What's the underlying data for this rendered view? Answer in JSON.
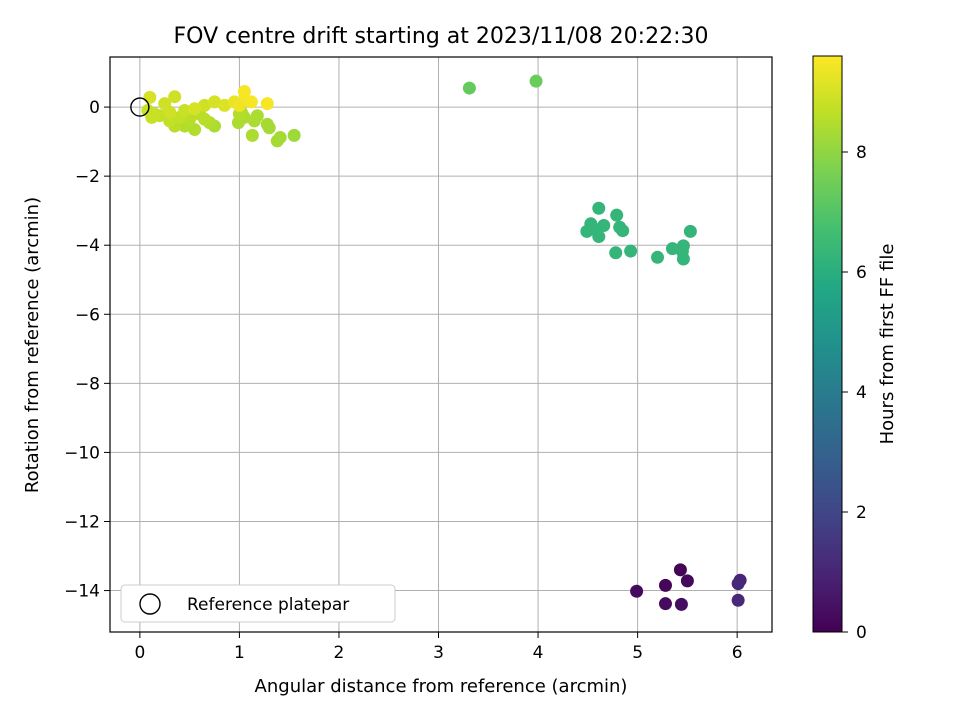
{
  "chart_data": {
    "type": "scatter",
    "title": "FOV centre drift starting at 2023/11/08 20:22:30",
    "xlabel": "Angular distance from reference (arcmin)",
    "ylabel": "Rotation from reference (arcmin)",
    "xlim": [
      -0.3,
      6.35
    ],
    "ylim": [
      -15.2,
      1.45
    ],
    "xticks": [
      0,
      1,
      2,
      3,
      4,
      5,
      6
    ],
    "yticks": [
      0,
      -2,
      -4,
      -6,
      -8,
      -10,
      -12,
      -14
    ],
    "grid": true,
    "legend": {
      "placement": "lower-left",
      "entries": [
        "Reference platepar"
      ]
    },
    "colorbar": {
      "label": "Hours from first FF file",
      "colormap": "viridis",
      "range": [
        0,
        9.6
      ],
      "ticks": [
        0,
        2,
        4,
        6,
        8
      ]
    },
    "reference_point": {
      "x": 0,
      "y": 0,
      "label": "Reference platepar"
    },
    "points": [
      {
        "x": 5.43,
        "y": -13.4,
        "h": 0.1
      },
      {
        "x": 5.28,
        "y": -13.85,
        "h": 0.15
      },
      {
        "x": 5.5,
        "y": -13.72,
        "h": 0.2
      },
      {
        "x": 4.99,
        "y": -14.02,
        "h": 0.25
      },
      {
        "x": 5.28,
        "y": -14.38,
        "h": 0.3
      },
      {
        "x": 5.44,
        "y": -14.4,
        "h": 0.35
      },
      {
        "x": 6.03,
        "y": -13.7,
        "h": 1.0
      },
      {
        "x": 6.01,
        "y": -13.8,
        "h": 1.05
      },
      {
        "x": 6.01,
        "y": -14.28,
        "h": 1.1
      },
      {
        "x": 4.61,
        "y": -2.93,
        "h": 6.3
      },
      {
        "x": 4.79,
        "y": -3.13,
        "h": 6.3
      },
      {
        "x": 4.53,
        "y": -3.38,
        "h": 6.3
      },
      {
        "x": 4.66,
        "y": -3.43,
        "h": 6.3
      },
      {
        "x": 4.82,
        "y": -3.48,
        "h": 6.3
      },
      {
        "x": 4.58,
        "y": -3.55,
        "h": 6.3
      },
      {
        "x": 4.49,
        "y": -3.6,
        "h": 6.3
      },
      {
        "x": 4.85,
        "y": -3.58,
        "h": 6.3
      },
      {
        "x": 4.61,
        "y": -3.75,
        "h": 6.3
      },
      {
        "x": 4.93,
        "y": -4.17,
        "h": 6.3
      },
      {
        "x": 4.78,
        "y": -4.22,
        "h": 6.3
      },
      {
        "x": 5.2,
        "y": -4.35,
        "h": 6.3
      },
      {
        "x": 5.35,
        "y": -4.1,
        "h": 6.3
      },
      {
        "x": 5.46,
        "y": -4.02,
        "h": 6.3
      },
      {
        "x": 5.45,
        "y": -4.18,
        "h": 6.3
      },
      {
        "x": 5.46,
        "y": -4.4,
        "h": 6.3
      },
      {
        "x": 5.53,
        "y": -3.6,
        "h": 6.3
      },
      {
        "x": 3.31,
        "y": 0.55,
        "h": 7.3
      },
      {
        "x": 3.98,
        "y": 0.75,
        "h": 7.4
      },
      {
        "x": 1.55,
        "y": -0.82,
        "h": 8.2
      },
      {
        "x": 1.41,
        "y": -0.88,
        "h": 8.3
      },
      {
        "x": 1.38,
        "y": -0.98,
        "h": 8.3
      },
      {
        "x": 1.13,
        "y": -0.82,
        "h": 8.4
      },
      {
        "x": 1.28,
        "y": -0.5,
        "h": 8.3
      },
      {
        "x": 1.3,
        "y": -0.6,
        "h": 8.3
      },
      {
        "x": 0.99,
        "y": -0.45,
        "h": 8.4
      },
      {
        "x": 1.02,
        "y": -0.15,
        "h": 8.4
      },
      {
        "x": 1.05,
        "y": -0.3,
        "h": 8.4
      },
      {
        "x": 1.15,
        "y": -0.4,
        "h": 8.4
      },
      {
        "x": 1.18,
        "y": -0.25,
        "h": 8.4
      },
      {
        "x": 1.0,
        "y": -0.2,
        "h": 8.5
      },
      {
        "x": 0.75,
        "y": -0.55,
        "h": 8.4
      },
      {
        "x": 0.7,
        "y": -0.45,
        "h": 8.5
      },
      {
        "x": 0.55,
        "y": -0.65,
        "h": 8.5
      },
      {
        "x": 0.45,
        "y": -0.55,
        "h": 8.5
      },
      {
        "x": 0.5,
        "y": -0.35,
        "h": 8.6
      },
      {
        "x": 0.6,
        "y": -0.2,
        "h": 8.6
      },
      {
        "x": 0.65,
        "y": -0.35,
        "h": 8.6
      },
      {
        "x": 0.35,
        "y": -0.55,
        "h": 8.6
      },
      {
        "x": 0.4,
        "y": -0.3,
        "h": 8.7
      },
      {
        "x": 0.3,
        "y": -0.4,
        "h": 8.7
      },
      {
        "x": 0.2,
        "y": -0.25,
        "h": 8.7
      },
      {
        "x": 0.15,
        "y": -0.2,
        "h": 8.8
      },
      {
        "x": 0.12,
        "y": -0.3,
        "h": 8.8
      },
      {
        "x": 0.08,
        "y": -0.1,
        "h": 8.8
      },
      {
        "x": 0.25,
        "y": 0.1,
        "h": 8.9
      },
      {
        "x": 0.35,
        "y": 0.3,
        "h": 8.9
      },
      {
        "x": 0.1,
        "y": 0.28,
        "h": 9.0
      },
      {
        "x": 0.45,
        "y": -0.1,
        "h": 8.8
      },
      {
        "x": 0.65,
        "y": 0.05,
        "h": 8.9
      },
      {
        "x": 0.75,
        "y": 0.15,
        "h": 9.0
      },
      {
        "x": 0.85,
        "y": 0.05,
        "h": 9.1
      },
      {
        "x": 0.95,
        "y": 0.15,
        "h": 9.3
      },
      {
        "x": 1.05,
        "y": 0.45,
        "h": 9.5
      },
      {
        "x": 1.05,
        "y": 0.2,
        "h": 9.5
      },
      {
        "x": 1.12,
        "y": 0.15,
        "h": 9.5
      },
      {
        "x": 1.0,
        "y": 0.05,
        "h": 9.4
      },
      {
        "x": 1.28,
        "y": 0.1,
        "h": 9.5
      },
      {
        "x": 0.55,
        "y": -0.05,
        "h": 9.0
      },
      {
        "x": 0.3,
        "y": -0.15,
        "h": 8.9
      }
    ]
  }
}
